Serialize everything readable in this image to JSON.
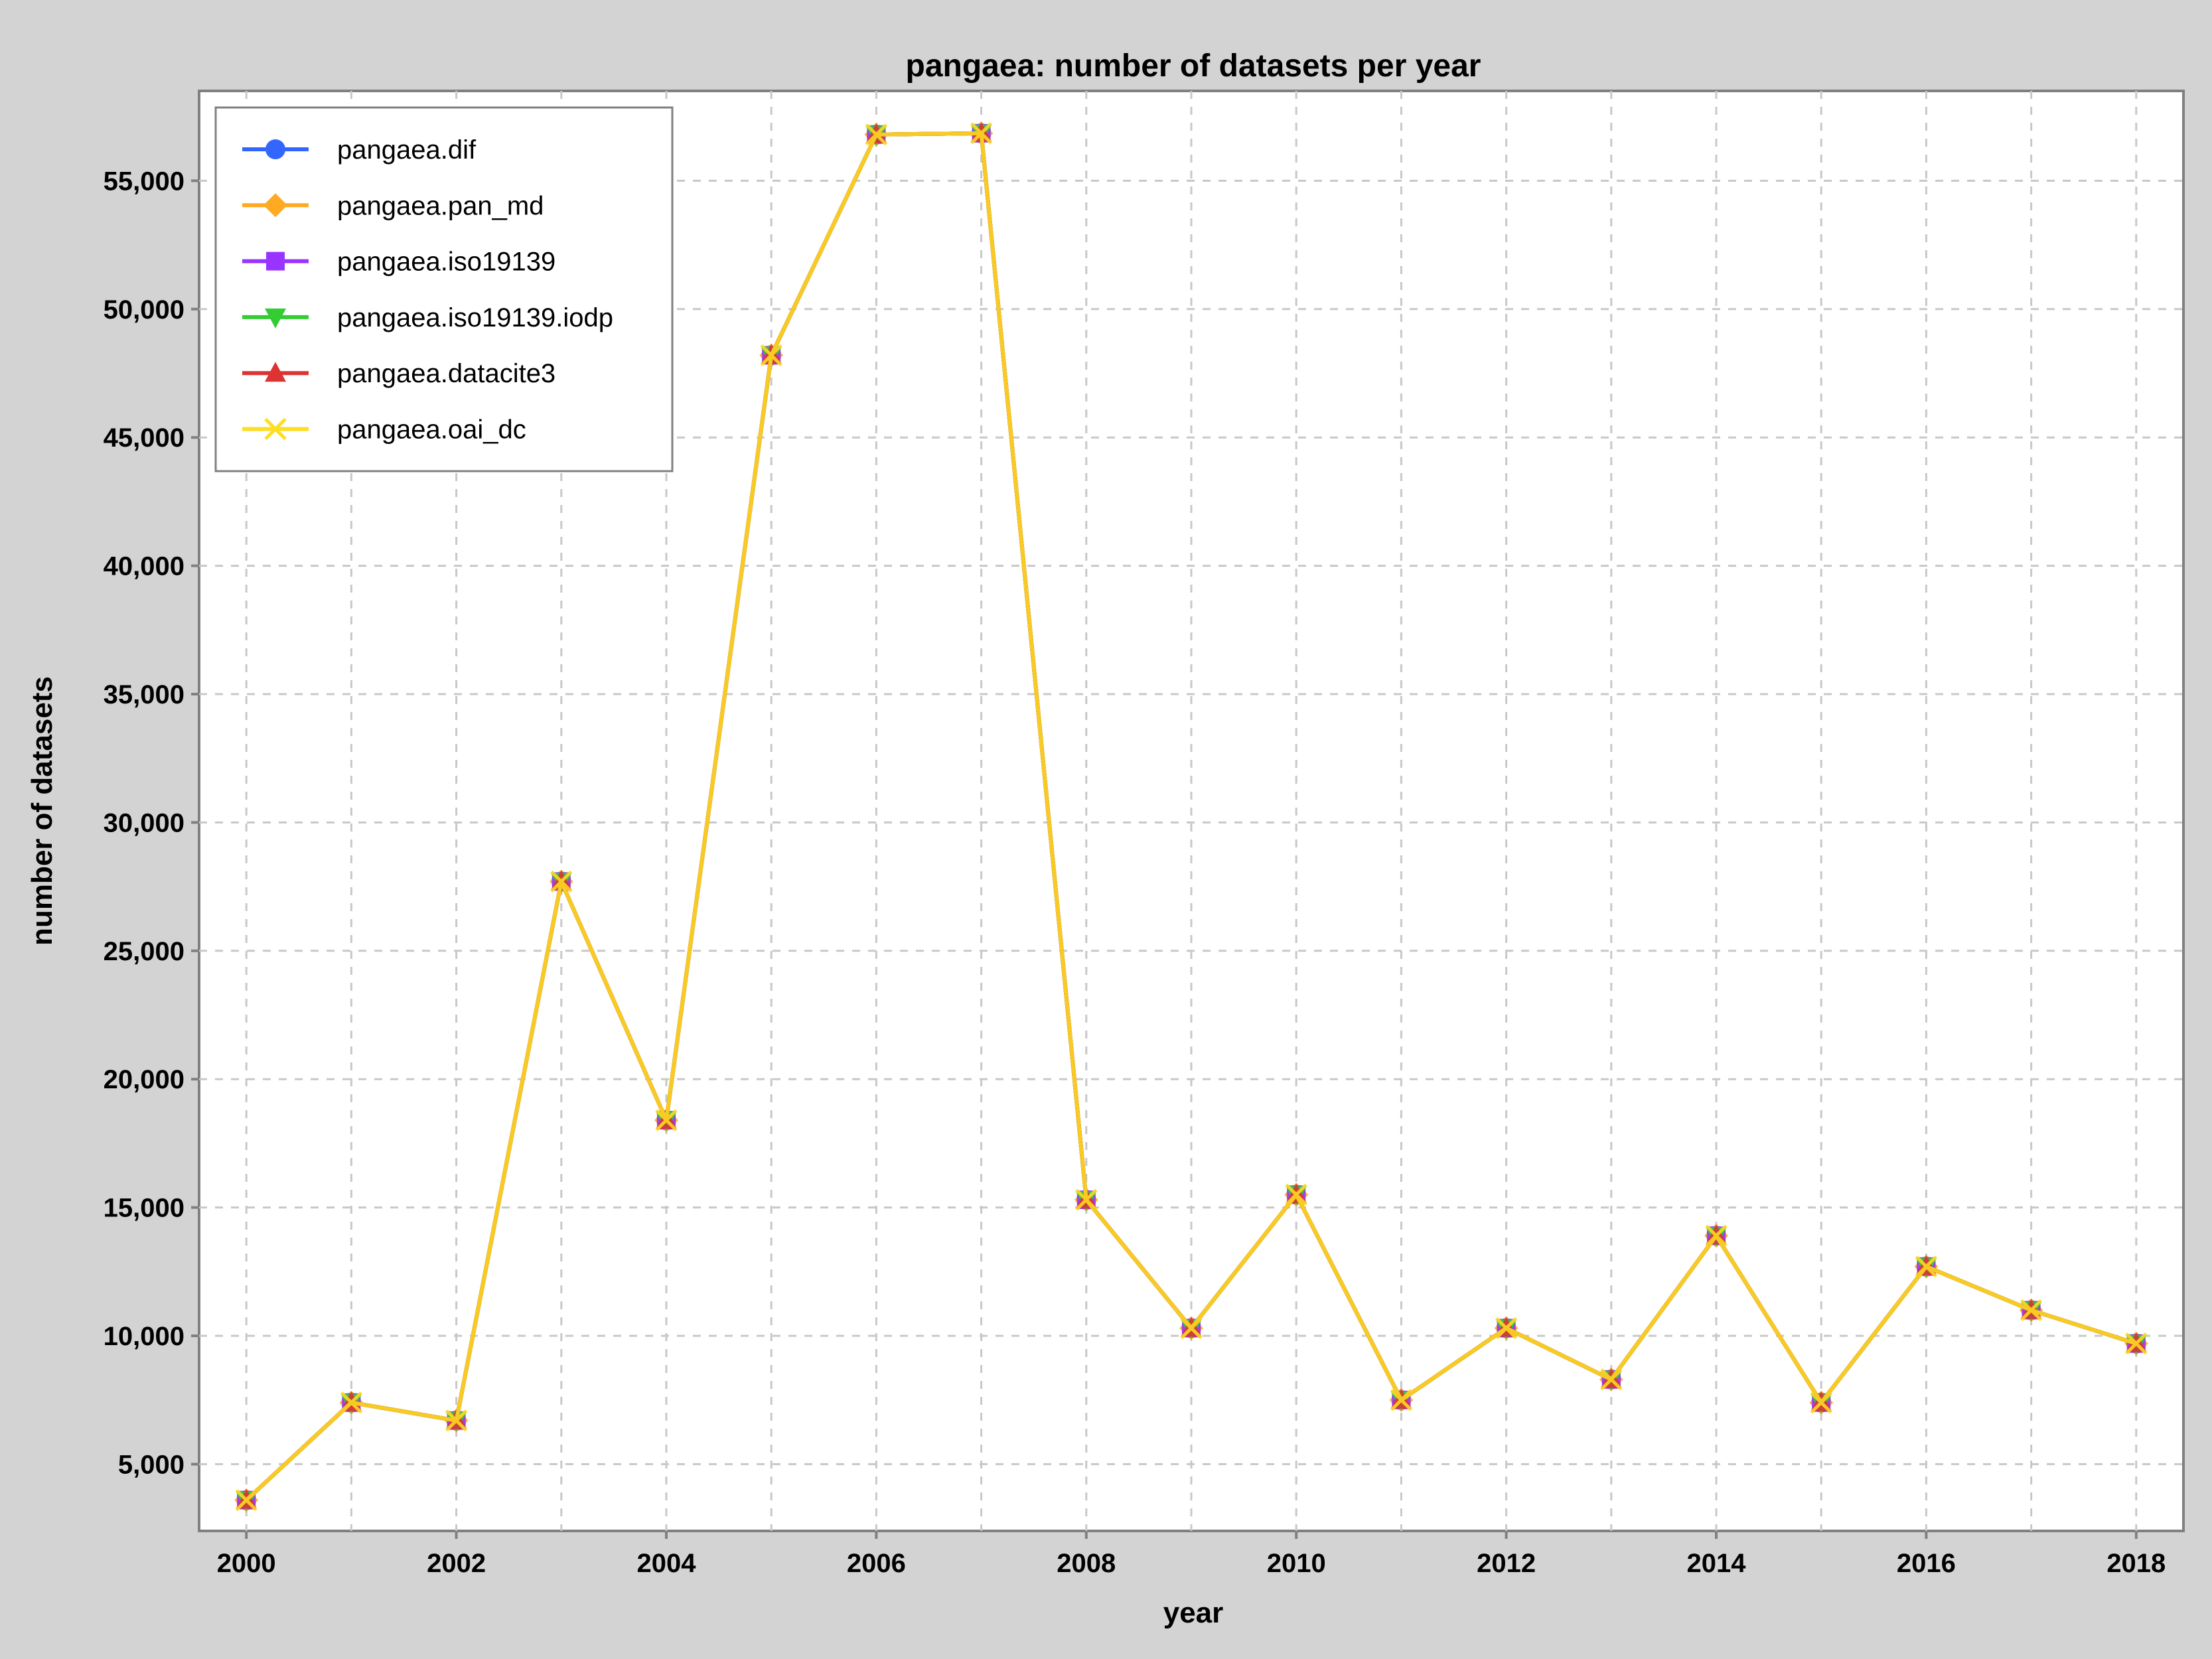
{
  "chart_data": {
    "type": "line",
    "title": "pangaea: number of datasets per year",
    "xlabel": "year",
    "ylabel": "number of datasets",
    "x": [
      2000,
      2001,
      2002,
      2003,
      2004,
      2005,
      2006,
      2007,
      2008,
      2009,
      2010,
      2011,
      2012,
      2013,
      2014,
      2015,
      2016,
      2017,
      2018
    ],
    "xlim": [
      1999.55,
      2018.45
    ],
    "ylim": [
      2400,
      58500
    ],
    "x_ticks": [
      2000,
      2002,
      2004,
      2006,
      2008,
      2010,
      2012,
      2014,
      2016,
      2018
    ],
    "x_tick_labels": [
      "2000",
      "2002",
      "2004",
      "2006",
      "2008",
      "2010",
      "2012",
      "2014",
      "2016",
      "2018"
    ],
    "y_ticks": [
      5000,
      10000,
      15000,
      20000,
      25000,
      30000,
      35000,
      40000,
      45000,
      50000,
      55000
    ],
    "y_tick_labels": [
      "5,000",
      "10,000",
      "15,000",
      "20,000",
      "25,000",
      "30,000",
      "35,000",
      "40,000",
      "45,000",
      "50,000",
      "55,000"
    ],
    "grid": true,
    "legend_position": "top-left",
    "series": [
      {
        "name": "pangaea.dif",
        "color": "#3366ff",
        "marker": "circle",
        "values": [
          3600,
          7400,
          6700,
          27700,
          18400,
          48200,
          56800,
          56850,
          15300,
          10300,
          15500,
          7500,
          10300,
          8300,
          13900,
          7400,
          12700,
          11000,
          9700
        ]
      },
      {
        "name": "pangaea.pan_md",
        "color": "#ffaa22",
        "marker": "diamond",
        "values": [
          3600,
          7400,
          6700,
          27700,
          18400,
          48200,
          56800,
          56850,
          15300,
          10300,
          15500,
          7500,
          10300,
          8300,
          13900,
          7400,
          12700,
          11000,
          9700
        ]
      },
      {
        "name": "pangaea.iso19139",
        "color": "#9933ff",
        "marker": "square",
        "values": [
          3600,
          7400,
          6700,
          27700,
          18400,
          48200,
          56800,
          56850,
          15300,
          10300,
          15500,
          7500,
          10300,
          8300,
          13900,
          7400,
          12700,
          11000,
          9700
        ]
      },
      {
        "name": "pangaea.iso19139.iodp",
        "color": "#33cc33",
        "marker": "triangle-down",
        "values": [
          3600,
          7400,
          6700,
          27700,
          18400,
          48200,
          56800,
          56850,
          15300,
          10300,
          15500,
          7500,
          10300,
          8300,
          13900,
          7400,
          12700,
          11000,
          9700
        ]
      },
      {
        "name": "pangaea.datacite3",
        "color": "#dd3333",
        "marker": "triangle-up",
        "values": [
          3600,
          7400,
          6700,
          27700,
          18400,
          48200,
          56800,
          56850,
          15300,
          10300,
          15500,
          7500,
          10300,
          8300,
          13900,
          7400,
          12700,
          11000,
          9700
        ]
      },
      {
        "name": "pangaea.oai_dc",
        "color": "#ffdd22",
        "marker": "x",
        "values": [
          3600,
          7400,
          6700,
          27700,
          18400,
          48200,
          56800,
          56850,
          15300,
          10300,
          15500,
          7500,
          10300,
          8300,
          13900,
          7400,
          12700,
          11000,
          9700
        ]
      }
    ]
  }
}
